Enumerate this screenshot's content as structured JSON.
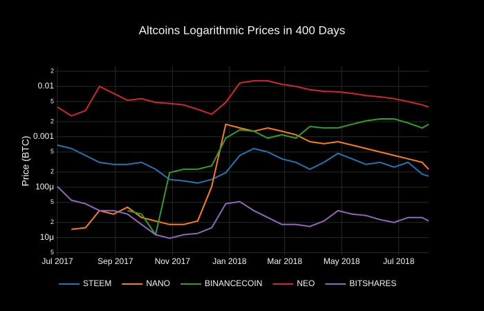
{
  "chart_data": {
    "type": "line",
    "title": "Altcoins Logarithmic Prices in 400 Days",
    "y_label": "Price (BTC)",
    "y_log": true,
    "grid": true,
    "legend_position": "bottom",
    "x": [
      0,
      15,
      30,
      45,
      60,
      75,
      90,
      105,
      120,
      135,
      150,
      165,
      180,
      195,
      210,
      225,
      240,
      255,
      270,
      285,
      300,
      315,
      330,
      345,
      360,
      375,
      390,
      397
    ],
    "xlim": [
      0,
      397
    ],
    "xticks": [
      {
        "value": 0,
        "label": "Jul 2017"
      },
      {
        "value": 62,
        "label": "Sep 2017"
      },
      {
        "value": 123,
        "label": "Nov 2017"
      },
      {
        "value": 184,
        "label": "Jan 2018"
      },
      {
        "value": 243,
        "label": "Mar 2018"
      },
      {
        "value": 304,
        "label": "May 2018"
      },
      {
        "value": 365,
        "label": "Jul 2018"
      }
    ],
    "ylim": [
      4.5e-06,
      0.025
    ],
    "yticks": [
      {
        "value": 5e-06,
        "label": "5"
      },
      {
        "value": 1e-05,
        "label": "10μ"
      },
      {
        "value": 2e-05,
        "label": "2"
      },
      {
        "value": 5e-05,
        "label": "5"
      },
      {
        "value": 0.0001,
        "label": "100μ"
      },
      {
        "value": 0.0002,
        "label": "2"
      },
      {
        "value": 0.0005,
        "label": "5"
      },
      0.001,
      {
        "value": 0.002,
        "label": "2"
      },
      {
        "value": 0.005,
        "label": "5"
      },
      0.01,
      {
        "value": 0.02,
        "label": "2"
      }
    ],
    "series": [
      {
        "name": "STEEM",
        "color": "#1f77b4",
        "values": [
          0.000685,
          0.000585,
          0.000427,
          0.000311,
          0.000283,
          0.000283,
          0.000311,
          0.000227,
          0.000142,
          0.000133,
          0.000121,
          0.000142,
          0.000194,
          0.000427,
          0.000585,
          0.0005,
          0.000365,
          0.000311,
          0.000227,
          0.000311,
          0.000469,
          0.000365,
          0.000283,
          0.000311,
          0.00025,
          0.000311,
          0.000182,
          0.000166
        ]
      },
      {
        "name": "NANO",
        "color": "#ff7f0e",
        "values": [
          null,
          1.46e-05,
          1.56e-05,
          3.42e-05,
          2.92e-05,
          4e-05,
          2.5e-05,
          2.13e-05,
          1.82e-05,
          1.82e-05,
          2.13e-05,
          0.000103,
          0.00177,
          0.0015,
          0.00129,
          0.0015,
          0.00129,
          0.0011,
          0.0008,
          0.00073,
          0.0008,
          0.000685,
          0.000585,
          0.0005,
          0.000427,
          0.000365,
          0.000311,
          0.000227
        ]
      },
      {
        "name": "BINANCECOIN",
        "color": "#2ca02c",
        "values": [
          null,
          null,
          null,
          null,
          null,
          3.42e-05,
          2.92e-05,
          1.14e-05,
          0.000194,
          0.000227,
          0.000227,
          0.000266,
          0.00094,
          0.00137,
          0.00129,
          0.00094,
          0.0011,
          0.00094,
          0.0016,
          0.0015,
          0.0015,
          0.00177,
          0.00207,
          0.00227,
          0.00227,
          0.00188,
          0.0015,
          0.00177
        ]
      },
      {
        "name": "NEO",
        "color": "#d62728",
        "values": [
          0.0039,
          0.0026,
          0.0033,
          0.01,
          0.0073,
          0.0053,
          0.0057,
          0.0048,
          0.0046,
          0.0043,
          0.0035,
          0.0028,
          0.0048,
          0.0117,
          0.0129,
          0.0129,
          0.011,
          0.01,
          0.0086,
          0.008,
          0.0078,
          0.0073,
          0.0066,
          0.0062,
          0.0057,
          0.005,
          0.0043,
          0.0039
        ]
      },
      {
        "name": "BITSHARES",
        "color": "#9467bd",
        "values": [
          0.000103,
          5.5e-05,
          4.69e-05,
          3.42e-05,
          3.42e-05,
          2.92e-05,
          1.82e-05,
          1.14e-05,
          9.7e-06,
          1.14e-05,
          1.21e-05,
          1.56e-05,
          4.69e-05,
          5.15e-05,
          3.42e-05,
          2.5e-05,
          1.82e-05,
          1.82e-05,
          1.66e-05,
          2.13e-05,
          3.42e-05,
          2.92e-05,
          2.74e-05,
          2.27e-05,
          2e-05,
          2.5e-05,
          2.5e-05,
          2.13e-05
        ]
      }
    ]
  }
}
